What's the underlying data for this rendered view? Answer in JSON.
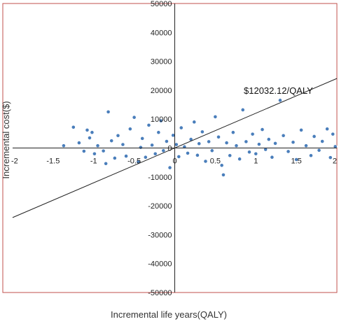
{
  "chart_data": {
    "type": "scatter",
    "title": "",
    "xlabel": "Incremental life years(QALY)",
    "ylabel": "Incremental cost($)",
    "xlim": [
      -2,
      2
    ],
    "ylim": [
      -50000,
      50000
    ],
    "x_ticks": [
      "-2",
      "-1.5",
      "-1",
      "-0.5",
      "0",
      "0.5",
      "1",
      "1.5",
      "2"
    ],
    "y_ticks": [
      "50000",
      "40000",
      "30000",
      "20000",
      "10000",
      "0",
      "-10000",
      "-20000",
      "-30000",
      "-40000",
      "-50000"
    ],
    "grid": false,
    "legend": "none",
    "point_color": "#4a7ebb",
    "frame_color": "#c0504d",
    "series": [
      {
        "points": [
          [
            -1.37,
            800
          ],
          [
            -1.25,
            7200
          ],
          [
            -1.18,
            1800
          ],
          [
            -1.12,
            -1100
          ],
          [
            -1.08,
            6200
          ],
          [
            -1.05,
            3500
          ],
          [
            -1.02,
            5400
          ],
          [
            -0.99,
            -2000
          ],
          [
            -0.95,
            800
          ],
          [
            -0.88,
            -1000
          ],
          [
            -0.85,
            -5400
          ],
          [
            -0.82,
            12500
          ],
          [
            -0.78,
            2500
          ],
          [
            -0.74,
            -3500
          ],
          [
            -0.7,
            4300
          ],
          [
            -0.64,
            1200
          ],
          [
            -0.6,
            -2800
          ],
          [
            -0.55,
            6600
          ],
          [
            -0.5,
            10600
          ],
          [
            -0.45,
            -4800
          ],
          [
            -0.42,
            200
          ],
          [
            -0.4,
            3300
          ],
          [
            -0.36,
            -3200
          ],
          [
            -0.32,
            7900
          ],
          [
            -0.28,
            1000
          ],
          [
            -0.24,
            -2000
          ],
          [
            -0.2,
            5400
          ],
          [
            -0.17,
            9400
          ],
          [
            -0.14,
            -900
          ],
          [
            -0.1,
            2300
          ],
          [
            -0.06,
            -6800
          ],
          [
            -0.02,
            4400
          ],
          [
            0.02,
            1200
          ],
          [
            0.05,
            -3000
          ],
          [
            0.08,
            7000
          ],
          [
            0.12,
            400
          ],
          [
            0.16,
            -1800
          ],
          [
            0.2,
            3000
          ],
          [
            0.24,
            9000
          ],
          [
            0.28,
            -2500
          ],
          [
            0.3,
            1500
          ],
          [
            0.34,
            5600
          ],
          [
            0.38,
            -4600
          ],
          [
            0.42,
            2200
          ],
          [
            0.46,
            -900
          ],
          [
            0.5,
            10800
          ],
          [
            0.54,
            3800
          ],
          [
            0.58,
            -6000
          ],
          [
            0.6,
            -9300
          ],
          [
            0.64,
            1800
          ],
          [
            0.68,
            -2600
          ],
          [
            0.72,
            5400
          ],
          [
            0.76,
            800
          ],
          [
            0.8,
            -3800
          ],
          [
            0.84,
            13200
          ],
          [
            0.88,
            2200
          ],
          [
            0.92,
            -1400
          ],
          [
            0.96,
            4800
          ],
          [
            1.0,
            -2000
          ],
          [
            1.04,
            1300
          ],
          [
            1.08,
            6400
          ],
          [
            1.12,
            -500
          ],
          [
            1.16,
            3000
          ],
          [
            1.2,
            -3200
          ],
          [
            1.24,
            1600
          ],
          [
            1.3,
            16500
          ],
          [
            1.34,
            4300
          ],
          [
            1.4,
            -1200
          ],
          [
            1.46,
            2000
          ],
          [
            1.5,
            -4000
          ],
          [
            1.56,
            6200
          ],
          [
            1.62,
            800
          ],
          [
            1.68,
            -2600
          ],
          [
            1.72,
            4000
          ],
          [
            1.78,
            -800
          ],
          [
            1.82,
            2300
          ],
          [
            1.88,
            6600
          ],
          [
            1.92,
            -3300
          ],
          [
            1.95,
            4800
          ],
          [
            1.98,
            500
          ]
        ]
      }
    ],
    "reference_line": {
      "label": "$12032.12/QALY",
      "slope": 12032.12
    }
  }
}
